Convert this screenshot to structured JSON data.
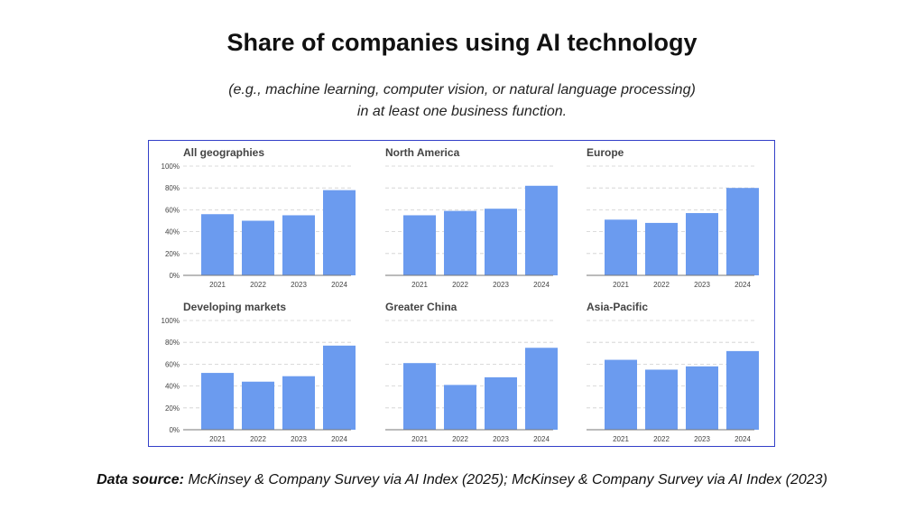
{
  "title": "Share of companies using AI technology",
  "subtitle": {
    "line1": "(e.g., machine learning, computer vision, or natural language processing)",
    "line2": "in at least one business function."
  },
  "source": {
    "label": "Data source:",
    "text": " McKinsey & Company Survey via AI Index (2025); McKinsey & Company Survey via AI Index (2023)"
  },
  "colors": {
    "bar": "#6b9bef",
    "frame": "#3340c8",
    "grid": "#cfcfcf",
    "axis": "#777777"
  },
  "chart_data": [
    {
      "type": "bar",
      "title": "All geographies",
      "categories": [
        "2021",
        "2022",
        "2023",
        "2024"
      ],
      "values": [
        56,
        50,
        55,
        78
      ],
      "ylim": [
        0,
        100
      ],
      "yticks": [
        "0%",
        "20%",
        "40%",
        "60%",
        "80%",
        "100%"
      ],
      "grid": true
    },
    {
      "type": "bar",
      "title": "North America",
      "categories": [
        "2021",
        "2022",
        "2023",
        "2024"
      ],
      "values": [
        55,
        59,
        61,
        82
      ],
      "ylim": [
        0,
        100
      ],
      "grid": true
    },
    {
      "type": "bar",
      "title": "Europe",
      "categories": [
        "2021",
        "2022",
        "2023",
        "2024"
      ],
      "values": [
        51,
        48,
        57,
        80
      ],
      "ylim": [
        0,
        100
      ],
      "grid": true
    },
    {
      "type": "bar",
      "title": "Developing markets",
      "categories": [
        "2021",
        "2022",
        "2023",
        "2024"
      ],
      "values": [
        52,
        44,
        49,
        77
      ],
      "ylim": [
        0,
        100
      ],
      "yticks": [
        "0%",
        "20%",
        "40%",
        "60%",
        "80%",
        "100%"
      ],
      "grid": true
    },
    {
      "type": "bar",
      "title": "Greater China",
      "categories": [
        "2021",
        "2022",
        "2023",
        "2024"
      ],
      "values": [
        61,
        41,
        48,
        75
      ],
      "ylim": [
        0,
        100
      ],
      "grid": true
    },
    {
      "type": "bar",
      "title": "Asia-Pacific",
      "categories": [
        "2021",
        "2022",
        "2023",
        "2024"
      ],
      "values": [
        64,
        55,
        58,
        72
      ],
      "ylim": [
        0,
        100
      ],
      "grid": true
    }
  ]
}
